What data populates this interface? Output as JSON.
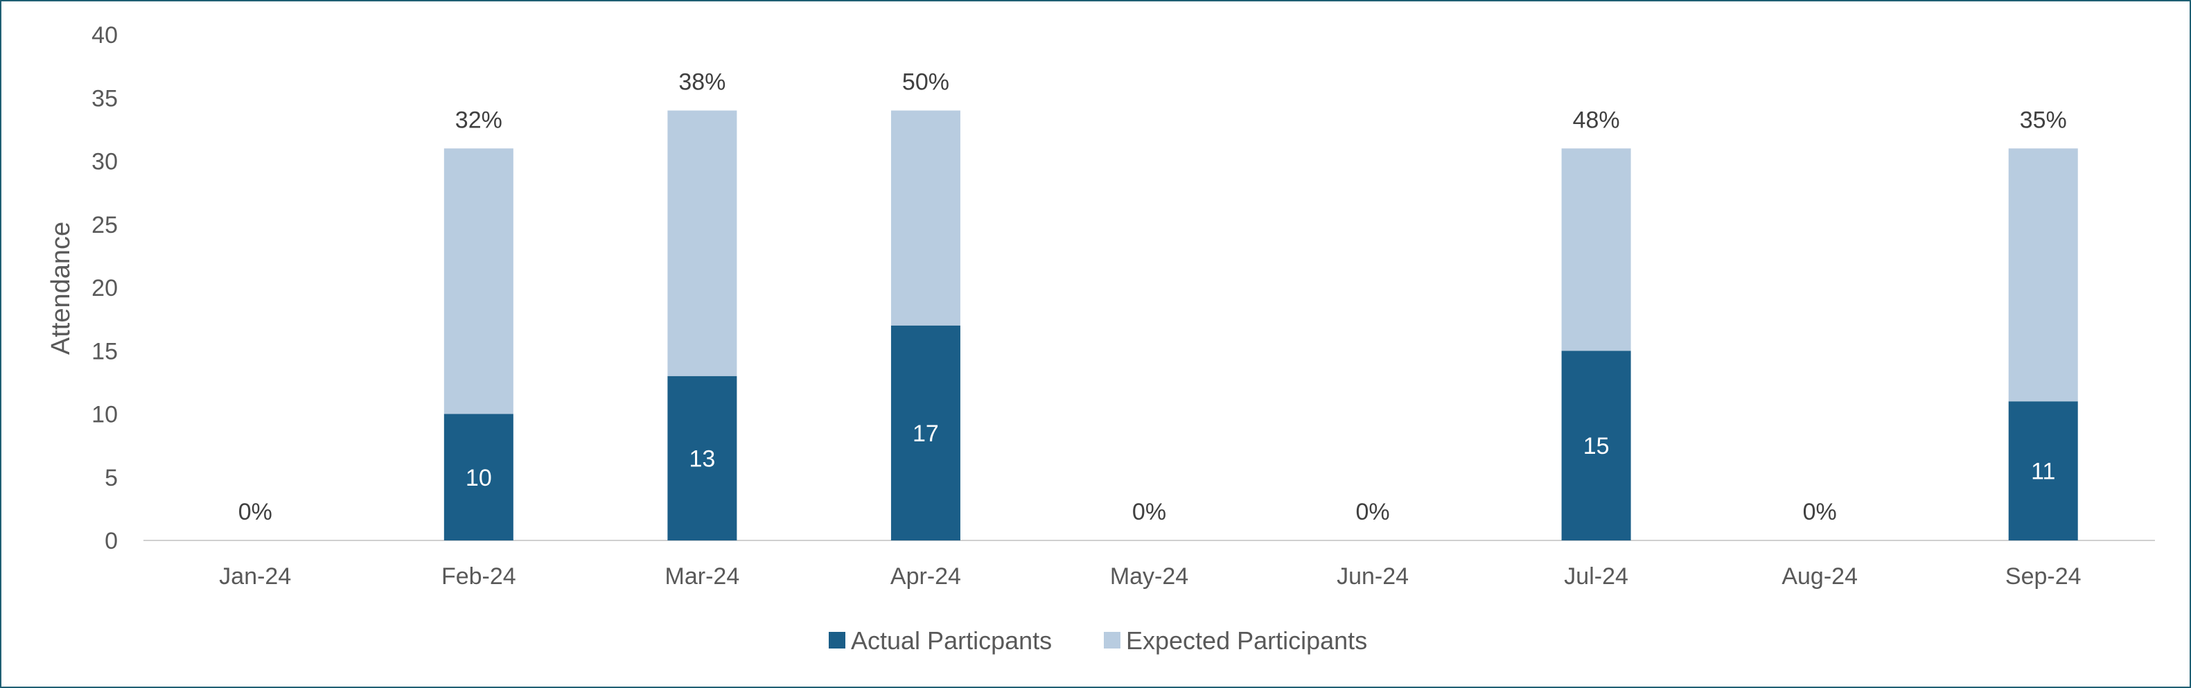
{
  "chart_data": {
    "type": "bar",
    "stacked": true,
    "categories": [
      "Jan-24",
      "Feb-24",
      "Mar-24",
      "Apr-24",
      "May-24",
      "Jun-24",
      "Jul-24",
      "Aug-24",
      "Sep-24"
    ],
    "series": [
      {
        "name": "Actual Particpants",
        "values": [
          0,
          10,
          13,
          17,
          0,
          0,
          15,
          0,
          11
        ],
        "color": "#1b5e88"
      },
      {
        "name": "Expected Participants",
        "values": [
          0,
          21,
          21,
          17,
          0,
          0,
          16,
          0,
          20
        ],
        "color": "#b8cce0"
      }
    ],
    "actual_labels": [
      "",
      "10",
      "13",
      "17",
      "",
      "",
      "15",
      "",
      "11"
    ],
    "percent_labels": [
      "0%",
      "32%",
      "38%",
      "50%",
      "0%",
      "0%",
      "48%",
      "0%",
      "35%"
    ],
    "ylabel": "Attendance",
    "ylim": [
      0,
      40
    ],
    "yticks": [
      "0",
      "5",
      "10",
      "15",
      "20",
      "25",
      "30",
      "35",
      "40"
    ],
    "grid": false,
    "legend_position": "bottom"
  }
}
